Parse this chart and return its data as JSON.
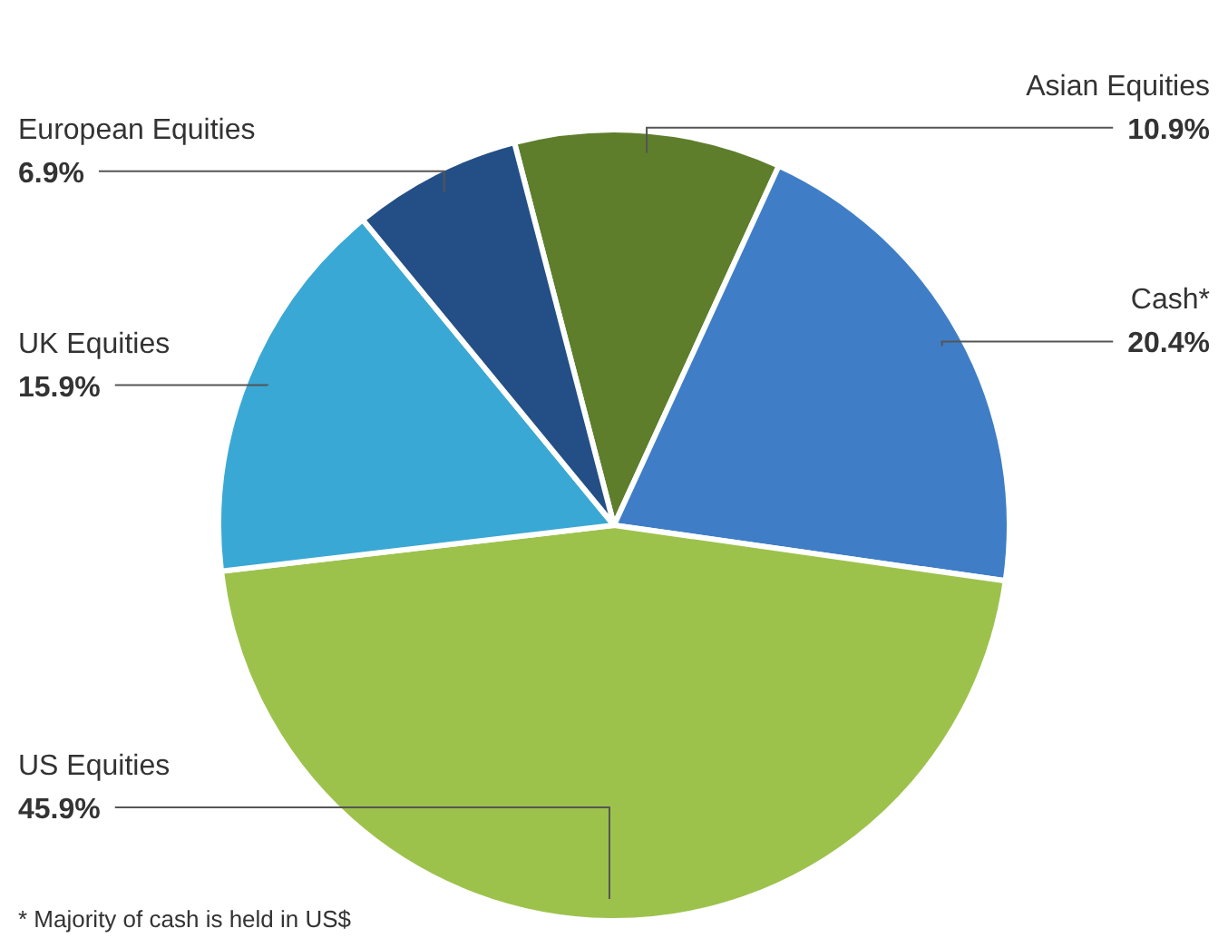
{
  "chart_data": {
    "type": "pie",
    "categories": [
      "Asian Equities",
      "Cash*",
      "US Equities",
      "UK Equities",
      "European Equities"
    ],
    "values": [
      10.9,
      20.4,
      45.9,
      15.9,
      6.9
    ],
    "value_labels": [
      "10.9%",
      "20.4%",
      "45.9%",
      "15.9%",
      "6.9%"
    ],
    "colors": [
      "#5e7e2c",
      "#3f7ec6",
      "#9cc24c",
      "#3aa8d4",
      "#234f86"
    ],
    "legend": false,
    "annotations": [
      "* Majority of cash is held in US$"
    ]
  }
}
